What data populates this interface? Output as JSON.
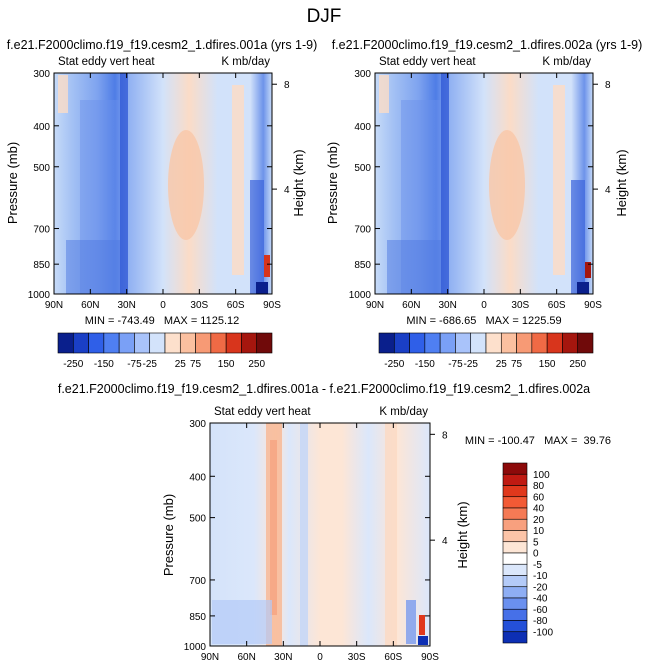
{
  "figure": {
    "title": "DJF"
  },
  "chart_data": [
    {
      "type": "heatmap",
      "title": "f.e21.F2000climo.f19_f19.cesm2_1.dfires.001a (yrs 1-9)",
      "subtitle_left": "Stat eddy vert heat",
      "subtitle_right": "K mb/day",
      "ylabel": "Pressure (mb)",
      "ylabel_right": "Height (km)",
      "x_ticks": [
        "90N",
        "60N",
        "30N",
        "0",
        "30S",
        "60S",
        "90S"
      ],
      "y_ticks": [
        "300",
        "400",
        "500",
        "700",
        "850",
        "1000"
      ],
      "y_ticks_right": [
        "8",
        "4"
      ],
      "stats": "MIN = -743.49   MAX = 1125.12",
      "colorbar_levels": [
        "-250",
        "-150",
        "-75",
        "-25",
        "25",
        "75",
        "150",
        "250"
      ],
      "colorbar_colors": [
        "#0a1f8c",
        "#1a3fc6",
        "#2f5fe8",
        "#4f7ff2",
        "#7aa0f6",
        "#a9c3fa",
        "#d3e3fb",
        "#fde0cc",
        "#fbc0a0",
        "#f79a75",
        "#f06a45",
        "#d8351c",
        "#a5160e",
        "#700a0a"
      ]
    },
    {
      "type": "heatmap",
      "title": "f.e21.F2000climo.f19_f19.cesm2_1.dfires.002a (yrs 1-9)",
      "subtitle_left": "Stat eddy vert heat",
      "subtitle_right": "K mb/day",
      "ylabel": "Pressure (mb)",
      "ylabel_right": "Height (km)",
      "x_ticks": [
        "90N",
        "60N",
        "30N",
        "0",
        "30S",
        "60S",
        "90S"
      ],
      "y_ticks": [
        "300",
        "400",
        "500",
        "700",
        "850",
        "1000"
      ],
      "y_ticks_right": [
        "8",
        "4"
      ],
      "stats": "MIN = -686.65   MAX = 1225.59",
      "colorbar_levels": [
        "-250",
        "-150",
        "-75",
        "-25",
        "25",
        "75",
        "150",
        "250"
      ],
      "colorbar_colors": [
        "#0a1f8c",
        "#1a3fc6",
        "#2f5fe8",
        "#4f7ff2",
        "#7aa0f6",
        "#a9c3fa",
        "#d3e3fb",
        "#fde0cc",
        "#fbc0a0",
        "#f79a75",
        "#f06a45",
        "#d8351c",
        "#a5160e",
        "#700a0a"
      ]
    },
    {
      "type": "heatmap",
      "title": "f.e21.F2000climo.f19_f19.cesm2_1.dfires.001a - f.e21.F2000climo.f19_f19.cesm2_1.dfires.002a",
      "subtitle_left": "Stat eddy vert heat",
      "subtitle_right": "K mb/day",
      "ylabel": "Pressure (mb)",
      "ylabel_right": "Height (km)",
      "x_ticks": [
        "90N",
        "60N",
        "30N",
        "0",
        "30S",
        "60S",
        "90S"
      ],
      "y_ticks": [
        "300",
        "400",
        "500",
        "700",
        "850",
        "1000"
      ],
      "y_ticks_right": [
        "8",
        "4"
      ],
      "stats": "MIN = -100.47   MAX =  39.76",
      "colorbar_levels": [
        "100",
        "80",
        "60",
        "40",
        "20",
        "10",
        "5",
        "0",
        "-5",
        "-10",
        "-20",
        "-40",
        "-60",
        "-80",
        "-100"
      ],
      "colorbar_colors": [
        "#8c0a0a",
        "#c01a12",
        "#e0381c",
        "#f25a35",
        "#f57a55",
        "#f8a07e",
        "#fbc4a8",
        "#fde6d6",
        "#ffffff",
        "#dbe7fb",
        "#b4cbf8",
        "#8eaef4",
        "#6a90ef",
        "#4670e8",
        "#2450d8",
        "#0d2fb4"
      ]
    }
  ]
}
